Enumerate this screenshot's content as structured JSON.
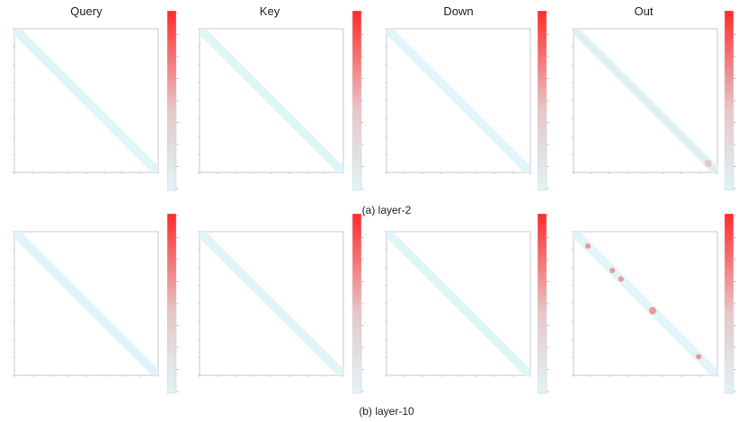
{
  "columns": [
    "Query",
    "Key",
    "Down",
    "Out"
  ],
  "captions": [
    "(a) layer-2",
    "(b) layer-10"
  ],
  "colors": {
    "low": "#dff5f7",
    "high": "#ff2a2a",
    "frame": "#bbbbbb"
  },
  "chart_data": [
    {
      "type": "heatmap",
      "panel": "layer-2 Query",
      "pattern": "diagonal-band",
      "hotspots": []
    },
    {
      "type": "heatmap",
      "panel": "layer-2 Key",
      "pattern": "diagonal-band",
      "hotspots": []
    },
    {
      "type": "heatmap",
      "panel": "layer-2 Down",
      "pattern": "diagonal-band",
      "hotspots": []
    },
    {
      "type": "heatmap",
      "panel": "layer-2 Out",
      "pattern": "diagonal-band",
      "hotspots": []
    },
    {
      "type": "heatmap",
      "panel": "layer-10 Query",
      "pattern": "diagonal-band",
      "hotspots": []
    },
    {
      "type": "heatmap",
      "panel": "layer-10 Key",
      "pattern": "diagonal-band",
      "hotspots": []
    },
    {
      "type": "heatmap",
      "panel": "layer-10 Down",
      "pattern": "diagonal-band",
      "hotspots": []
    },
    {
      "type": "heatmap",
      "panel": "layer-10 Out",
      "pattern": "diagonal-band",
      "hotspots": [
        0.1,
        0.27,
        0.33,
        0.55,
        0.87
      ]
    }
  ]
}
